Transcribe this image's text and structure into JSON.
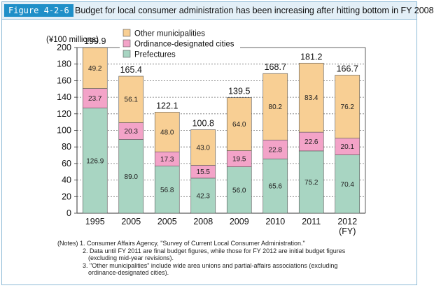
{
  "figure": {
    "label": "Figure 4-2-6",
    "title": "Budget for local consumer administration has been increasing after hitting bottom in FY 2008"
  },
  "colors": {
    "prefectures": "#a8d5c2",
    "ordinance": "#f3a3c8",
    "other": "#f8cf94",
    "accent": "#1f8fc8"
  },
  "chart_data": {
    "type": "bar",
    "stacked": true,
    "unit_label": "(¥100 millions)",
    "categories": [
      "1995",
      "2005",
      "2005",
      "2008",
      "2009",
      "2010",
      "2011",
      "2012"
    ],
    "category_sublabels": [
      "",
      "",
      "",
      "",
      "",
      "",
      "",
      "(FY)"
    ],
    "series": [
      {
        "name": "Prefectures",
        "values": [
          126.9,
          89.0,
          56.8,
          42.3,
          56.0,
          65.6,
          75.2,
          70.4
        ],
        "labels": [
          "126.9",
          "89.0",
          "56.8",
          "42.3",
          "56.0",
          "65.6",
          "75.2",
          "70.4"
        ]
      },
      {
        "name": "Ordinance-designated cities",
        "values": [
          23.7,
          20.3,
          17.3,
          15.5,
          19.5,
          22.8,
          22.6,
          20.1
        ],
        "labels": [
          "23.7",
          "20.3",
          "17.3",
          "15.5",
          "19.5",
          "22.8",
          "22.6",
          "20.1"
        ]
      },
      {
        "name": "Other municipalities",
        "values": [
          49.2,
          56.1,
          48.0,
          43.0,
          64.0,
          80.2,
          83.4,
          76.2
        ],
        "labels": [
          "49.2",
          "56.1",
          "48.0",
          "43.0",
          "64.0",
          "80.2",
          "83.4",
          "76.2"
        ]
      }
    ],
    "totals": [
      199.9,
      165.4,
      122.1,
      100.8,
      139.5,
      168.7,
      181.2,
      166.7
    ],
    "total_labels": [
      "199.9",
      "165.4",
      "122.1",
      "100.8",
      "139.5",
      "168.7",
      "181.2",
      "166.7"
    ],
    "legend": [
      "Other municipalities",
      "Ordinance-designated cities",
      "Prefectures"
    ],
    "y_ticks": [
      "0",
      "20",
      "40",
      "60",
      "80",
      "100",
      "120",
      "140",
      "160",
      "180",
      "200"
    ],
    "ylim": [
      0,
      200
    ],
    "xlabel": "FY",
    "ylabel": "(¥100 millions)"
  },
  "notes": [
    "(Notes) 1. Consumer Affairs Agency, \"Survey of Current Local Consumer Administration.\"",
    "2. Data until FY 2011 are final budget figures, while those for FY 2012 are initial budget figures",
    "(excluding mid-year revisions).",
    "3. \"Other municipalities\" include wide area unions and partial-affairs associations (excluding",
    "ordinance-designated cities)."
  ]
}
